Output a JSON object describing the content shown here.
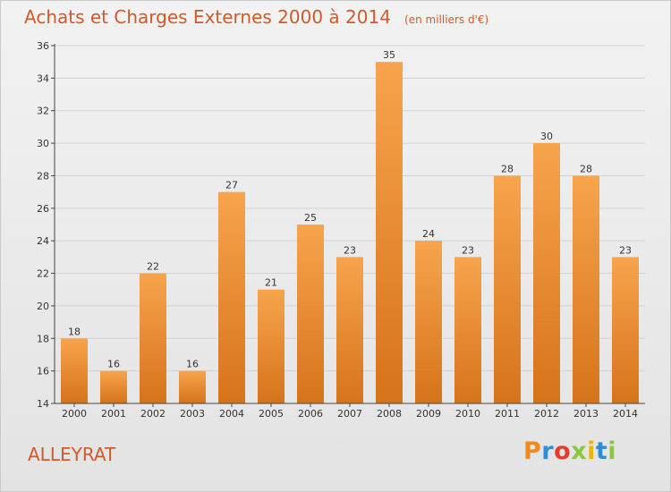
{
  "title": "Achats et Charges Externes 2000 à 2014",
  "subtitle": "(en milliers d'€)",
  "footer_label": "ALLEYRAT",
  "brand": {
    "text": "Proxiti",
    "letters": [
      "P",
      "r",
      "o",
      "x",
      "i",
      "t",
      "i"
    ],
    "colors": [
      "#f08a1a",
      "#2c8fd6",
      "#e23c2c",
      "#8cc63f",
      "#f0b400",
      "#2c8fd6",
      "#8cc63f"
    ]
  },
  "colors": {
    "bar_top": "#f7a44d",
    "bar_bottom": "#d6731a",
    "text": "#d05a2a",
    "axis": "#444444",
    "grid": "#d2d2d2"
  },
  "chart_data": {
    "type": "bar",
    "title": "Achats et Charges Externes 2000 à 2014",
    "subtitle": "(en milliers d'€)",
    "categories": [
      "2000",
      "2001",
      "2002",
      "2003",
      "2004",
      "2005",
      "2006",
      "2007",
      "2008",
      "2009",
      "2010",
      "2011",
      "2012",
      "2013",
      "2014"
    ],
    "values": [
      18,
      16,
      22,
      16,
      27,
      21,
      25,
      23,
      35,
      24,
      23,
      28,
      30,
      28,
      23
    ],
    "ylim": [
      14,
      36
    ],
    "yticks": [
      14,
      16,
      18,
      20,
      22,
      24,
      26,
      28,
      30,
      32,
      34,
      36
    ],
    "grid": true,
    "xlabel": "",
    "ylabel": ""
  }
}
